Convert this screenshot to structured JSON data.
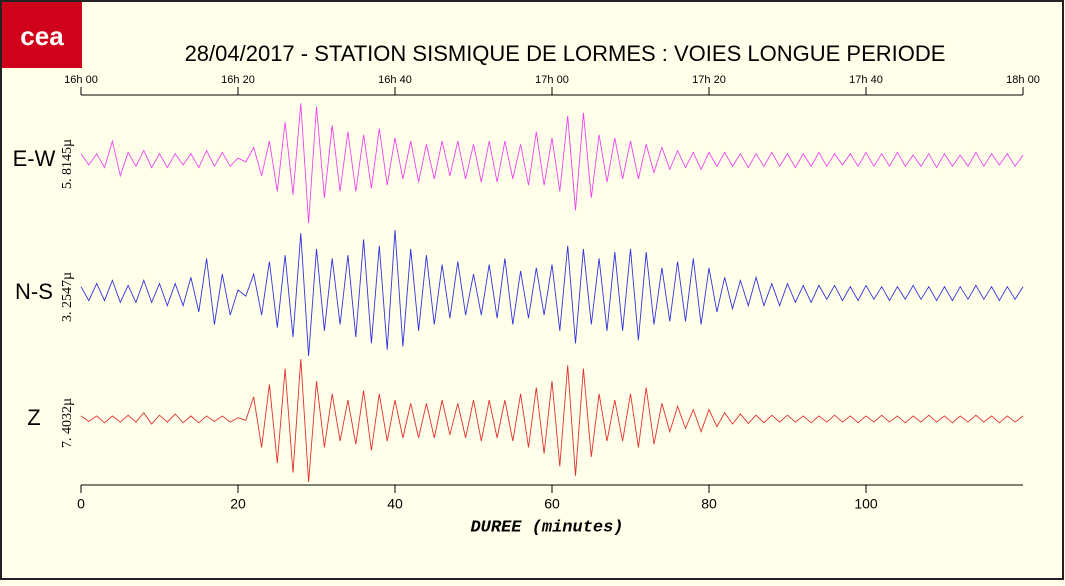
{
  "logo": "cea",
  "chart_data": {
    "type": "line",
    "title": "28/04/2017  -  STATION SISMIQUE DE LORMES : VOIES LONGUE PERIODE",
    "x_label": "DUREE (minutes)",
    "xlim": [
      0,
      120
    ],
    "xticks": [
      0,
      20,
      40,
      60,
      80,
      100
    ],
    "x2ticks": [
      {
        "value": 0,
        "label": "16h 00"
      },
      {
        "value": 20,
        "label": "16h 20"
      },
      {
        "value": 40,
        "label": "16h 40"
      },
      {
        "value": 60,
        "label": "17h 00"
      },
      {
        "value": 80,
        "label": "17h 20"
      },
      {
        "value": 100,
        "label": "17h 40"
      },
      {
        "value": 120,
        "label": "18h 00"
      }
    ],
    "ylim": [
      -1,
      1
    ],
    "x": [
      0,
      1,
      2,
      3,
      4,
      5,
      6,
      7,
      8,
      9,
      10,
      11,
      12,
      13,
      14,
      15,
      16,
      17,
      18,
      19,
      20,
      21,
      22,
      23,
      24,
      25,
      26,
      27,
      28,
      29,
      30,
      31,
      32,
      33,
      34,
      35,
      36,
      37,
      38,
      39,
      40,
      41,
      42,
      43,
      44,
      45,
      46,
      47,
      48,
      49,
      50,
      51,
      52,
      53,
      54,
      55,
      56,
      57,
      58,
      59,
      60,
      61,
      62,
      63,
      64,
      65,
      66,
      67,
      68,
      69,
      70,
      71,
      72,
      73,
      74,
      75,
      76,
      77,
      78,
      79,
      80,
      81,
      82,
      83,
      84,
      85,
      86,
      87,
      88,
      89,
      90,
      91,
      92,
      93,
      94,
      95,
      96,
      97,
      98,
      99,
      100,
      101,
      102,
      103,
      104,
      105,
      106,
      107,
      108,
      109,
      110,
      111,
      112,
      113,
      114,
      115,
      116,
      117,
      118,
      119,
      120
    ],
    "series": [
      {
        "name": "E-W",
        "scale_label": "5. 8145µ",
        "color": "#ee44ee",
        "values": [
          0.1,
          -0.08,
          0.1,
          -0.12,
          0.3,
          -0.25,
          0.12,
          -0.1,
          0.15,
          -0.12,
          0.1,
          -0.12,
          0.1,
          -0.08,
          0.1,
          -0.12,
          0.15,
          -0.1,
          0.12,
          -0.1,
          0.03,
          -0.03,
          0.2,
          -0.25,
          0.3,
          -0.5,
          0.6,
          -0.55,
          0.9,
          -1.0,
          0.85,
          -0.6,
          0.55,
          -0.5,
          0.45,
          -0.5,
          0.4,
          -0.45,
          0.5,
          -0.4,
          0.35,
          -0.3,
          0.3,
          -0.35,
          0.25,
          -0.3,
          0.3,
          -0.25,
          0.3,
          -0.3,
          0.25,
          -0.35,
          0.3,
          -0.35,
          0.3,
          -0.3,
          0.25,
          -0.4,
          0.45,
          -0.4,
          0.35,
          -0.5,
          0.7,
          -0.8,
          0.75,
          -0.6,
          0.4,
          -0.35,
          0.35,
          -0.3,
          0.3,
          -0.3,
          0.25,
          -0.2,
          0.2,
          -0.15,
          0.15,
          -0.12,
          0.12,
          -0.15,
          0.12,
          -0.1,
          0.12,
          -0.1,
          0.1,
          -0.12,
          0.1,
          -0.1,
          0.12,
          -0.1,
          0.1,
          -0.12,
          0.1,
          -0.1,
          0.12,
          -0.1,
          0.1,
          -0.08,
          0.1,
          -0.1,
          0.12,
          -0.1,
          0.1,
          -0.1,
          0.12,
          -0.1,
          0.08,
          -0.1,
          0.1,
          -0.12,
          0.1,
          -0.1,
          0.08,
          -0.1,
          0.12,
          -0.1,
          0.1,
          -0.08,
          0.1,
          -0.1,
          0.08
        ]
      },
      {
        "name": "N-S",
        "scale_label": "3. 2547µ",
        "color": "#3333dd",
        "values": [
          0.1,
          -0.12,
          0.15,
          -0.12,
          0.2,
          -0.15,
          0.12,
          -0.15,
          0.2,
          -0.15,
          0.15,
          -0.2,
          0.15,
          -0.2,
          0.25,
          -0.3,
          0.55,
          -0.5,
          0.3,
          -0.35,
          0.05,
          -0.05,
          0.3,
          -0.35,
          0.5,
          -0.55,
          0.6,
          -0.7,
          0.95,
          -1.0,
          0.7,
          -0.6,
          0.55,
          -0.5,
          0.6,
          -0.7,
          0.85,
          -0.8,
          0.75,
          -0.9,
          1.0,
          -0.85,
          0.7,
          -0.6,
          0.6,
          -0.5,
          0.45,
          -0.4,
          0.5,
          -0.35,
          0.3,
          -0.35,
          0.45,
          -0.4,
          0.55,
          -0.5,
          0.35,
          -0.4,
          0.4,
          -0.35,
          0.45,
          -0.6,
          0.75,
          -0.8,
          0.7,
          -0.5,
          0.55,
          -0.6,
          0.65,
          -0.6,
          0.7,
          -0.75,
          0.65,
          -0.5,
          0.4,
          -0.45,
          0.5,
          -0.45,
          0.55,
          -0.5,
          0.4,
          -0.3,
          0.25,
          -0.25,
          0.2,
          -0.2,
          0.25,
          -0.2,
          0.15,
          -0.2,
          0.15,
          -0.15,
          0.12,
          -0.15,
          0.12,
          -0.1,
          0.12,
          -0.12,
          0.1,
          -0.12,
          0.12,
          -0.1,
          0.1,
          -0.12,
          0.1,
          -0.1,
          0.12,
          -0.1,
          0.1,
          -0.12,
          0.1,
          -0.12,
          0.1,
          -0.1,
          0.12,
          -0.1,
          0.1,
          -0.12,
          0.1,
          -0.1,
          0.1
        ]
      },
      {
        "name": "Z",
        "scale_label": "7. 4032µ",
        "color": "#e03030",
        "values": [
          0.05,
          -0.04,
          0.05,
          -0.06,
          0.05,
          -0.05,
          0.06,
          -0.05,
          0.1,
          -0.08,
          0.06,
          -0.05,
          0.08,
          -0.06,
          0.05,
          -0.06,
          0.05,
          -0.04,
          0.05,
          -0.05,
          0.02,
          -0.02,
          0.35,
          -0.45,
          0.55,
          -0.7,
          0.8,
          -0.85,
          0.95,
          -1.0,
          0.6,
          -0.45,
          0.4,
          -0.35,
          0.3,
          -0.4,
          0.45,
          -0.5,
          0.4,
          -0.35,
          0.3,
          -0.3,
          0.25,
          -0.3,
          0.25,
          -0.3,
          0.3,
          -0.25,
          0.25,
          -0.3,
          0.3,
          -0.35,
          0.3,
          -0.3,
          0.3,
          -0.35,
          0.4,
          -0.45,
          0.5,
          -0.55,
          0.6,
          -0.75,
          0.85,
          -0.9,
          0.8,
          -0.6,
          0.4,
          -0.35,
          0.3,
          -0.35,
          0.4,
          -0.45,
          0.5,
          -0.4,
          0.25,
          -0.2,
          0.2,
          -0.15,
          0.15,
          -0.2,
          0.15,
          -0.12,
          0.1,
          -0.08,
          0.08,
          -0.07,
          0.06,
          -0.06,
          0.06,
          -0.05,
          0.06,
          -0.05,
          0.05,
          -0.06,
          0.05,
          -0.05,
          0.06,
          -0.05,
          0.05,
          -0.06,
          0.05,
          -0.05,
          0.06,
          -0.05,
          0.05,
          -0.06,
          0.05,
          -0.05,
          0.06,
          -0.05,
          0.05,
          -0.06,
          0.05,
          -0.05,
          0.06,
          -0.05,
          0.05,
          -0.06,
          0.05,
          -0.05,
          0.05
        ]
      }
    ]
  }
}
